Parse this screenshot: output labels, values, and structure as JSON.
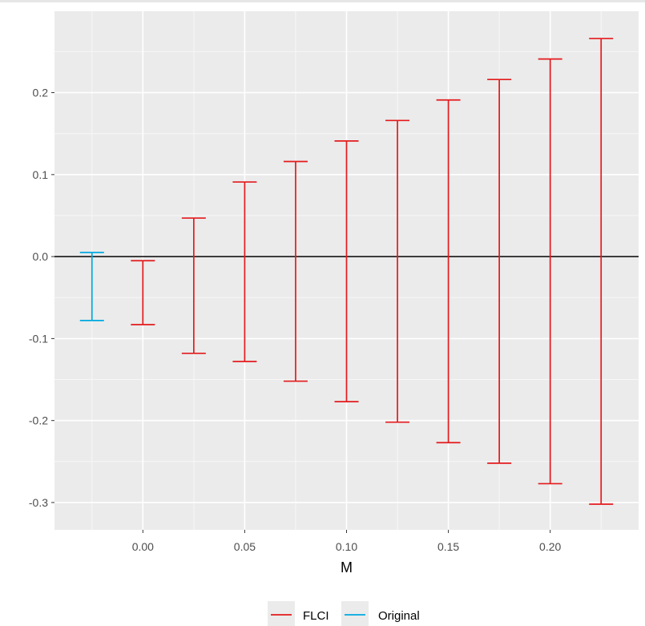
{
  "chart_data": {
    "type": "errorbar",
    "title": "",
    "xlabel": "M",
    "ylabel": "",
    "xlim": [
      -0.0434,
      0.2434
    ],
    "ylim": [
      -0.3333,
      0.2993
    ],
    "x_ticks": [
      0.0,
      0.05,
      0.1,
      0.15,
      0.2
    ],
    "x_tick_labels": [
      "0.00",
      "0.05",
      "0.10",
      "0.15",
      "0.20"
    ],
    "y_ticks": [
      0.2,
      0.1,
      0.0,
      -0.1,
      -0.2,
      -0.3
    ],
    "y_tick_labels": [
      "0.2",
      "0.1",
      "0.0",
      "-0.1",
      "-0.2",
      "-0.3"
    ],
    "reference_line": {
      "y": 0.0,
      "color": "#000000"
    },
    "grid": true,
    "legend_position": "bottom",
    "series": [
      {
        "name": "FLCI",
        "color": "#e41a1c",
        "points": [
          {
            "x": 0.0,
            "lb": -0.083,
            "ub": -0.005
          },
          {
            "x": 0.025,
            "lb": -0.118,
            "ub": 0.047
          },
          {
            "x": 0.05,
            "lb": -0.128,
            "ub": 0.091
          },
          {
            "x": 0.075,
            "lb": -0.152,
            "ub": 0.116
          },
          {
            "x": 0.1,
            "lb": -0.177,
            "ub": 0.141
          },
          {
            "x": 0.125,
            "lb": -0.202,
            "ub": 0.166
          },
          {
            "x": 0.15,
            "lb": -0.227,
            "ub": 0.191
          },
          {
            "x": 0.175,
            "lb": -0.252,
            "ub": 0.216
          },
          {
            "x": 0.2,
            "lb": -0.277,
            "ub": 0.241
          },
          {
            "x": 0.225,
            "lb": -0.302,
            "ub": 0.266
          }
        ]
      },
      {
        "name": "Original",
        "color": "#00a9e0",
        "points": [
          {
            "x": -0.025,
            "lb": -0.078,
            "ub": 0.005
          }
        ]
      }
    ]
  }
}
